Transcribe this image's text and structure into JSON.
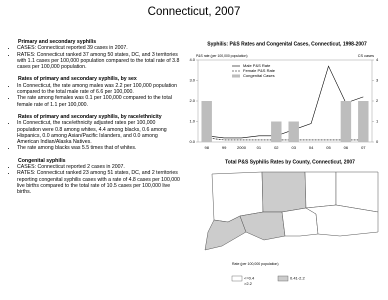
{
  "header": {
    "title": "Connecticut, 2007"
  },
  "sections": [
    {
      "heading": "Primary and secondary syphilis",
      "bullets": [
        "CASES: Connecticut reported 39 cases in 2007.",
        "RATES: Connecticut ranked 37 among 50 states, DC, and 3 territories with 1.1 cases per 100,000 population compared to the total rate of 3.8 cases per 100,000 population."
      ]
    },
    {
      "heading": "Rates of primary and secondary syphilis, by sex",
      "bullets": [
        "In Connecticut, the rate among males was 2.2 per 100,000 population compared to the total male rate of 6.6 per 100,000.",
        "The rate among females was 0.1 per 100,000 compared to the total female rate of 1.1 per 100,000."
      ]
    },
    {
      "heading": "Rates of primary and secondary syphilis, by race/ethnicity",
      "bullets": [
        "In Connecticut, the race/ethnicity adjusted rates per 100,000 population were 0.8 among whites, 4.4 among blacks, 0.6 among Hispanics, 0.0 among Asian/Pacific Islanders, and 0.0 among American Indian/Alaska Natives.",
        "The rate among blacks was 5.5 times that of whites."
      ]
    },
    {
      "heading": "Congenital syphilis",
      "bullets": [
        "CASES: Connecticut reported 2 cases in 2007.",
        "RATES: Connecticut ranked 23 among 51 states, DC, and 2 territories reporting congenital syphilis cases with a rate of 4.8 cases per 100,000 live births compared to the total rate of 10.5 cases per 100,000 live births."
      ]
    }
  ],
  "chart_data": {
    "type": "combo",
    "title": "Syphilis: P&S Rates and Congenital Cases, Connecticut, 1998-2007",
    "y_label": "P&S rate (per 100,000 population)",
    "y2_label": "CS cases",
    "categories": [
      "98",
      "99",
      "2000",
      "01",
      "02",
      "03",
      "04",
      "05",
      "06",
      "07"
    ],
    "series": [
      {
        "name": "Male P&S Rate",
        "kind": "line",
        "color": "#000000",
        "values": [
          0.3,
          0.2,
          0.2,
          0.3,
          0.3,
          0.6,
          0.9,
          3.7,
          1.9,
          2.2
        ]
      },
      {
        "name": "Female P&S Rate",
        "kind": "dashed",
        "color": "#000000",
        "values": [
          0.2,
          0.1,
          0.1,
          0.1,
          0.1,
          0.1,
          0.1,
          0.1,
          0.1,
          0.1
        ]
      },
      {
        "name": "Congenital Cases",
        "kind": "bar",
        "axis": "y2",
        "color": "#bdbdbd",
        "values": [
          2,
          0,
          0,
          0,
          1,
          1,
          0,
          0,
          2,
          2
        ]
      }
    ],
    "ylim": [
      0,
      4
    ],
    "yticks": [
      {
        "value": 0,
        "label": "0.0"
      },
      {
        "value": 1,
        "label": "1.0"
      },
      {
        "value": 2,
        "label": "2.0"
      },
      {
        "value": 3,
        "label": "3.0"
      },
      {
        "value": 4,
        "label": "4.0"
      }
    ],
    "y2lim": [
      0,
      4
    ],
    "y2ticks": [
      0,
      1,
      2,
      3,
      4
    ]
  },
  "map": {
    "title": "Total P&S Syphilis Rates by County, Connecticut, 2007",
    "legend_title": "Rate (per 100,000 population)",
    "legend": [
      "<=0.4",
      ">2.2",
      "0.41-2.2"
    ]
  }
}
